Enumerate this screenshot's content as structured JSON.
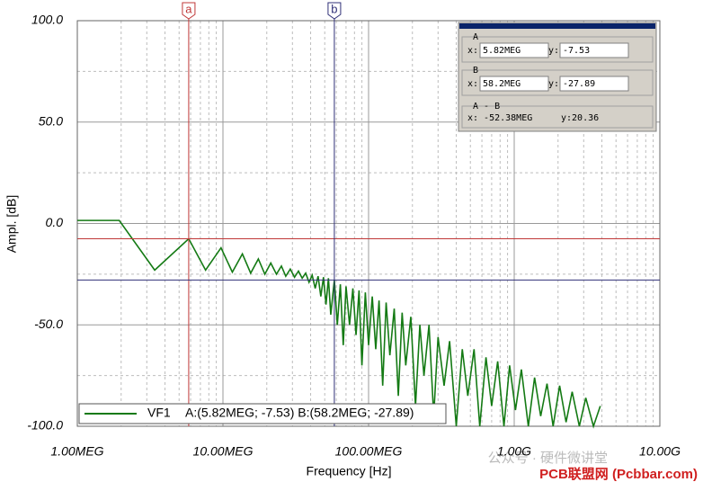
{
  "chart_data": {
    "type": "line",
    "xlabel": "Frequency [Hz]",
    "ylabel": "Ampl. [dB]",
    "xscale": "log",
    "grid": true,
    "xlim": [
      1000000,
      10000000000
    ],
    "ylim": [
      -100,
      100
    ],
    "xticks": [
      {
        "value": 1000000,
        "label": "1.00MEG"
      },
      {
        "value": 10000000,
        "label": "10.00MEG"
      },
      {
        "value": 100000000,
        "label": "100.00MEG"
      },
      {
        "value": 1000000000,
        "label": "1.00G"
      },
      {
        "value": 10000000000,
        "label": "10.00G"
      }
    ],
    "xminor": [
      2000000.0,
      3000000.0,
      4000000.0,
      5000000.0,
      6000000.0,
      7000000.0,
      8000000.0,
      9000000.0,
      20000000.0,
      30000000.0,
      40000000.0,
      50000000.0,
      60000000.0,
      70000000.0,
      80000000.0,
      90000000.0,
      200000000.0,
      300000000.0,
      400000000.0,
      500000000.0,
      600000000.0,
      700000000.0,
      800000000.0,
      900000000.0,
      2000000000.0,
      3000000000.0,
      4000000000.0,
      5000000000.0,
      6000000000.0,
      7000000000.0,
      8000000000.0,
      9000000000.0
    ],
    "yticks": [
      {
        "value": 100,
        "label": "100.0"
      },
      {
        "value": 50,
        "label": "50.0"
      },
      {
        "value": 0,
        "label": "0.0"
      },
      {
        "value": -50,
        "label": "-50.0"
      },
      {
        "value": -100,
        "label": "-100.0"
      }
    ],
    "yminor": [
      75,
      25,
      -25,
      -75
    ],
    "x": [
      1000000.0,
      1940000.0,
      3400000.0,
      5820000.0,
      7600000.0,
      9700000.0,
      11600000.0,
      13600000.0,
      15500000.0,
      17500000.0,
      19400000.0,
      21300000.0,
      23300000.0,
      25200000.0,
      27000000.0,
      29000000.0,
      31000000.0,
      33000000.0,
      35000000.0,
      37000000.0,
      39000000.0,
      41000000.0,
      43000000.0,
      45000000.0,
      47000000.0,
      49000000.0,
      51000000.0,
      53000000.0,
      55000000.0,
      58200000.0,
      61000000.0,
      64000000.0,
      67000000.0,
      70000000.0,
      74000000.0,
      78000000.0,
      82000000.0,
      86000000.0,
      90000000.0,
      95000000.0,
      100000000.0,
      106000000.0,
      112000000.0,
      118000000.0,
      125000000.0,
      132000000.0,
      140000000.0,
      150000000.0,
      160000000.0,
      170000000.0,
      180000000.0,
      195000000.0,
      210000000.0,
      225000000.0,
      240000000.0,
      260000000.0,
      280000000.0,
      300000000.0,
      330000000.0,
      360000000.0,
      400000000.0,
      440000000.0,
      480000000.0,
      530000000.0,
      580000000.0,
      640000000.0,
      700000000.0,
      770000000.0,
      850000000.0,
      930000000.0,
      1020000000.0,
      1120000000.0,
      1250000000.0,
      1380000000.0,
      1520000000.0,
      1680000000.0,
      1850000000.0,
      2050000000.0,
      2270000000.0,
      2500000000.0,
      2800000000.0,
      3100000000.0,
      3500000000.0,
      3900000000.0
    ],
    "series": [
      {
        "name": "VF1",
        "color": "#147a14",
        "values": [
          1.5,
          1.5,
          -23,
          -7.53,
          -23,
          -12,
          -24,
          -15,
          -24.5,
          -17.5,
          -25,
          -19.5,
          -25,
          -21,
          -26,
          -22.5,
          -26.5,
          -23.5,
          -27,
          -24.5,
          -29,
          -25.5,
          -32,
          -26,
          -36,
          -26.5,
          -40,
          -27,
          -45,
          -27.89,
          -50,
          -30,
          -60,
          -31,
          -50,
          -32,
          -55,
          -33,
          -70,
          -34,
          -60,
          -36,
          -62,
          -38,
          -80,
          -39,
          -65,
          -42,
          -85,
          -44,
          -70,
          -46,
          -90,
          -50,
          -75,
          -50,
          -95,
          -56,
          -80,
          -58,
          -100,
          -62,
          -85,
          -62,
          -100,
          -66,
          -90,
          -68,
          -100,
          -70,
          -92,
          -72,
          -100,
          -76,
          -95,
          -79,
          -100,
          -80,
          -98,
          -83,
          -100,
          -86,
          -100,
          -90
        ]
      }
    ],
    "legend_text": "A:(5.82MEG; -7.53) B:(58.2MEG; -27.89)",
    "cursors": [
      {
        "name": "a",
        "panel_title": "A",
        "color": "#c03838",
        "x": {
          "value": 5820000,
          "label": "5.82MEG"
        },
        "y": -7.53
      },
      {
        "name": "b",
        "panel_title": "B",
        "color": "#303078",
        "x": {
          "value": 58200000,
          "label": "58.2MEG"
        },
        "y": -27.89
      }
    ],
    "x_prefix": "x:",
    "y_prefix": "y:",
    "difference": {
      "title": "A - B",
      "x_text": "x: -52.38MEG",
      "y_text": "y:20.36"
    }
  },
  "watermark": {
    "line1": "公众号 · 硬件微讲堂",
    "line2": "PCB联盟网 (Pcbbar.com)"
  }
}
